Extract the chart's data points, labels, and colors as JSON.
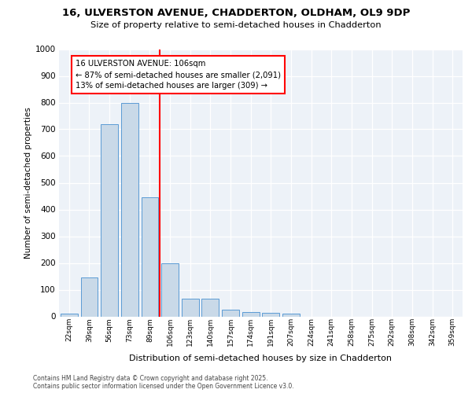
{
  "title_line1": "16, ULVERSTON AVENUE, CHADDERTON, OLDHAM, OL9 9DP",
  "title_line2": "Size of property relative to semi-detached houses in Chadderton",
  "xlabel": "Distribution of semi-detached houses by size in Chadderton",
  "ylabel": "Number of semi-detached properties",
  "categories": [
    "22sqm",
    "39sqm",
    "56sqm",
    "73sqm",
    "89sqm",
    "106sqm",
    "123sqm",
    "140sqm",
    "157sqm",
    "174sqm",
    "191sqm",
    "207sqm",
    "224sqm",
    "241sqm",
    "258sqm",
    "275sqm",
    "292sqm",
    "308sqm",
    "342sqm",
    "359sqm"
  ],
  "values": [
    10,
    145,
    720,
    800,
    445,
    200,
    65,
    65,
    25,
    17,
    12,
    10,
    0,
    0,
    0,
    0,
    0,
    0,
    0,
    0
  ],
  "bar_color": "#c9d9e8",
  "bar_edge_color": "#5b9bd5",
  "vline_index": 5,
  "vline_color": "red",
  "annotation_line1": "16 ULVERSTON AVENUE: 106sqm",
  "annotation_line2": "← 87% of semi-detached houses are smaller (2,091)",
  "annotation_line3": "13% of semi-detached houses are larger (309) →",
  "annotation_box_facecolor": "white",
  "annotation_box_edgecolor": "red",
  "ylim": [
    0,
    1000
  ],
  "yticks": [
    0,
    100,
    200,
    300,
    400,
    500,
    600,
    700,
    800,
    900,
    1000
  ],
  "plot_bg_color": "#edf2f8",
  "footer_line1": "Contains HM Land Registry data © Crown copyright and database right 2025.",
  "footer_line2": "Contains public sector information licensed under the Open Government Licence v3.0."
}
